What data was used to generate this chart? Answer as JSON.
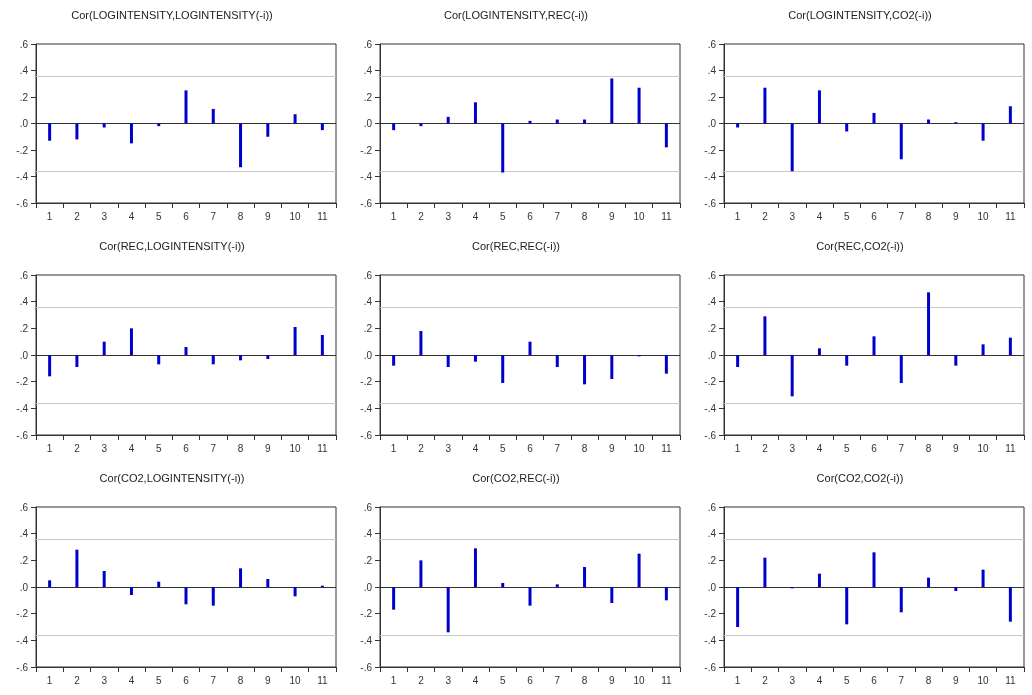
{
  "chart_data": [
    {
      "type": "bar",
      "title": "Cor(LOGINTENSITY,LOGINTENSITY(-i))",
      "categories": [
        "1",
        "2",
        "3",
        "4",
        "5",
        "6",
        "7",
        "8",
        "9",
        "10",
        "11"
      ],
      "color": "#0000cc",
      "values": [
        -0.13,
        -0.12,
        -0.03,
        -0.15,
        -0.02,
        0.25,
        0.11,
        -0.33,
        -0.1,
        0.07,
        -0.05
      ],
      "ylim": [
        -0.6,
        0.6
      ],
      "yticks": [
        {
          "value": -0.6,
          "label": "-.6"
        },
        {
          "value": -0.4,
          "label": "-.4"
        },
        {
          "value": -0.2,
          "label": "-.2"
        },
        {
          "value": 0,
          "label": ".0"
        },
        {
          "value": 0.2,
          "label": ".2"
        },
        {
          "value": 0.4,
          "label": ".4"
        },
        {
          "value": 0.6,
          "label": ".6"
        }
      ],
      "grid": false,
      "ref_lines": [
        {
          "axis": "y",
          "value": 0.36,
          "color": "#c8c8c8"
        },
        {
          "axis": "y",
          "value": -0.36,
          "color": "#c8c8c8"
        },
        {
          "axis": "y",
          "value": 0,
          "color": "#333333"
        }
      ]
    },
    {
      "type": "bar",
      "title": "Cor(LOGINTENSITY,REC(-i))",
      "categories": [
        "1",
        "2",
        "3",
        "4",
        "5",
        "6",
        "7",
        "8",
        "9",
        "10",
        "11"
      ],
      "color": "#0000cc",
      "values": [
        -0.05,
        -0.02,
        0.05,
        0.16,
        -0.37,
        0.02,
        0.03,
        0.03,
        0.34,
        0.27,
        -0.18
      ],
      "ylim": [
        -0.6,
        0.6
      ],
      "yticks": [
        {
          "value": -0.6,
          "label": "-.6"
        },
        {
          "value": -0.4,
          "label": "-.4"
        },
        {
          "value": -0.2,
          "label": "-.2"
        },
        {
          "value": 0,
          "label": ".0"
        },
        {
          "value": 0.2,
          "label": ".2"
        },
        {
          "value": 0.4,
          "label": ".4"
        },
        {
          "value": 0.6,
          "label": ".6"
        }
      ],
      "grid": false,
      "ref_lines": [
        {
          "axis": "y",
          "value": 0.36,
          "color": "#c8c8c8"
        },
        {
          "axis": "y",
          "value": -0.36,
          "color": "#c8c8c8"
        },
        {
          "axis": "y",
          "value": 0,
          "color": "#333333"
        }
      ]
    },
    {
      "type": "bar",
      "title": "Cor(LOGINTENSITY,CO2(-i))",
      "categories": [
        "1",
        "2",
        "3",
        "4",
        "5",
        "6",
        "7",
        "8",
        "9",
        "10",
        "11"
      ],
      "color": "#0000cc",
      "values": [
        -0.03,
        0.27,
        -0.36,
        0.25,
        -0.06,
        0.08,
        -0.27,
        0.03,
        0.01,
        -0.13,
        0.13
      ],
      "ylim": [
        -0.6,
        0.6
      ],
      "yticks": [
        {
          "value": -0.6,
          "label": "-.6"
        },
        {
          "value": -0.4,
          "label": "-.4"
        },
        {
          "value": -0.2,
          "label": "-.2"
        },
        {
          "value": 0,
          "label": ".0"
        },
        {
          "value": 0.2,
          "label": ".2"
        },
        {
          "value": 0.4,
          "label": ".4"
        },
        {
          "value": 0.6,
          "label": ".6"
        }
      ],
      "grid": false,
      "ref_lines": [
        {
          "axis": "y",
          "value": 0.36,
          "color": "#c8c8c8"
        },
        {
          "axis": "y",
          "value": -0.36,
          "color": "#c8c8c8"
        },
        {
          "axis": "y",
          "value": 0,
          "color": "#333333"
        }
      ]
    },
    {
      "type": "bar",
      "title": "Cor(REC,LOGINTENSITY(-i))",
      "categories": [
        "1",
        "2",
        "3",
        "4",
        "5",
        "6",
        "7",
        "8",
        "9",
        "10",
        "11"
      ],
      "color": "#0000cc",
      "values": [
        -0.16,
        -0.09,
        0.1,
        0.2,
        -0.07,
        0.06,
        -0.07,
        -0.04,
        -0.03,
        0.21,
        0.15
      ],
      "ylim": [
        -0.6,
        0.6
      ],
      "yticks": [
        {
          "value": -0.6,
          "label": "-.6"
        },
        {
          "value": -0.4,
          "label": "-.4"
        },
        {
          "value": -0.2,
          "label": "-.2"
        },
        {
          "value": 0,
          "label": ".0"
        },
        {
          "value": 0.2,
          "label": ".2"
        },
        {
          "value": 0.4,
          "label": ".4"
        },
        {
          "value": 0.6,
          "label": ".6"
        }
      ],
      "grid": false,
      "ref_lines": [
        {
          "axis": "y",
          "value": 0.36,
          "color": "#c8c8c8"
        },
        {
          "axis": "y",
          "value": -0.36,
          "color": "#c8c8c8"
        },
        {
          "axis": "y",
          "value": 0,
          "color": "#333333"
        }
      ]
    },
    {
      "type": "bar",
      "title": "Cor(REC,REC(-i))",
      "categories": [
        "1",
        "2",
        "3",
        "4",
        "5",
        "6",
        "7",
        "8",
        "9",
        "10",
        "11"
      ],
      "color": "#0000cc",
      "values": [
        -0.08,
        0.18,
        -0.09,
        -0.05,
        -0.21,
        0.1,
        -0.09,
        -0.22,
        -0.18,
        -0.01,
        -0.14
      ],
      "ylim": [
        -0.6,
        0.6
      ],
      "yticks": [
        {
          "value": -0.6,
          "label": "-.6"
        },
        {
          "value": -0.4,
          "label": "-.4"
        },
        {
          "value": -0.2,
          "label": "-.2"
        },
        {
          "value": 0,
          "label": ".0"
        },
        {
          "value": 0.2,
          "label": ".2"
        },
        {
          "value": 0.4,
          "label": ".4"
        },
        {
          "value": 0.6,
          "label": ".6"
        }
      ],
      "grid": false,
      "ref_lines": [
        {
          "axis": "y",
          "value": 0.36,
          "color": "#c8c8c8"
        },
        {
          "axis": "y",
          "value": -0.36,
          "color": "#c8c8c8"
        },
        {
          "axis": "y",
          "value": 0,
          "color": "#333333"
        }
      ]
    },
    {
      "type": "bar",
      "title": "Cor(REC,CO2(-i))",
      "categories": [
        "1",
        "2",
        "3",
        "4",
        "5",
        "6",
        "7",
        "8",
        "9",
        "10",
        "11"
      ],
      "color": "#0000cc",
      "values": [
        -0.09,
        0.29,
        -0.31,
        0.05,
        -0.08,
        0.14,
        -0.21,
        0.47,
        -0.08,
        0.08,
        0.13
      ],
      "ylim": [
        -0.6,
        0.6
      ],
      "yticks": [
        {
          "value": -0.6,
          "label": "-.6"
        },
        {
          "value": -0.4,
          "label": "-.4"
        },
        {
          "value": -0.2,
          "label": "-.2"
        },
        {
          "value": 0,
          "label": ".0"
        },
        {
          "value": 0.2,
          "label": ".2"
        },
        {
          "value": 0.4,
          "label": ".4"
        },
        {
          "value": 0.6,
          "label": ".6"
        }
      ],
      "grid": false,
      "ref_lines": [
        {
          "axis": "y",
          "value": 0.36,
          "color": "#c8c8c8"
        },
        {
          "axis": "y",
          "value": -0.36,
          "color": "#c8c8c8"
        },
        {
          "axis": "y",
          "value": 0,
          "color": "#333333"
        }
      ]
    },
    {
      "type": "bar",
      "title": "Cor(CO2,LOGINTENSITY(-i))",
      "categories": [
        "1",
        "2",
        "3",
        "4",
        "5",
        "6",
        "7",
        "8",
        "9",
        "10",
        "11"
      ],
      "color": "#0000cc",
      "values": [
        0.05,
        0.28,
        0.12,
        -0.06,
        0.04,
        -0.13,
        -0.14,
        0.14,
        0.06,
        -0.07,
        0.01
      ],
      "ylim": [
        -0.6,
        0.6
      ],
      "yticks": [
        {
          "value": -0.6,
          "label": "-.6"
        },
        {
          "value": -0.4,
          "label": "-.4"
        },
        {
          "value": -0.2,
          "label": "-.2"
        },
        {
          "value": 0,
          "label": ".0"
        },
        {
          "value": 0.2,
          "label": ".2"
        },
        {
          "value": 0.4,
          "label": ".4"
        },
        {
          "value": 0.6,
          "label": ".6"
        }
      ],
      "grid": false,
      "ref_lines": [
        {
          "axis": "y",
          "value": 0.36,
          "color": "#c8c8c8"
        },
        {
          "axis": "y",
          "value": -0.36,
          "color": "#c8c8c8"
        },
        {
          "axis": "y",
          "value": 0,
          "color": "#333333"
        }
      ]
    },
    {
      "type": "bar",
      "title": "Cor(CO2,REC(-i))",
      "categories": [
        "1",
        "2",
        "3",
        "4",
        "5",
        "6",
        "7",
        "8",
        "9",
        "10",
        "11"
      ],
      "color": "#0000cc",
      "values": [
        -0.17,
        0.2,
        -0.34,
        0.29,
        0.03,
        -0.14,
        0.02,
        0.15,
        -0.12,
        0.25,
        -0.1
      ],
      "ylim": [
        -0.6,
        0.6
      ],
      "yticks": [
        {
          "value": -0.6,
          "label": "-.6"
        },
        {
          "value": -0.4,
          "label": "-.4"
        },
        {
          "value": -0.2,
          "label": "-.2"
        },
        {
          "value": 0,
          "label": ".0"
        },
        {
          "value": 0.2,
          "label": ".2"
        },
        {
          "value": 0.4,
          "label": ".4"
        },
        {
          "value": 0.6,
          "label": ".6"
        }
      ],
      "grid": false,
      "ref_lines": [
        {
          "axis": "y",
          "value": 0.36,
          "color": "#c8c8c8"
        },
        {
          "axis": "y",
          "value": -0.36,
          "color": "#c8c8c8"
        },
        {
          "axis": "y",
          "value": 0,
          "color": "#333333"
        }
      ]
    },
    {
      "type": "bar",
      "title": "Cor(CO2,CO2(-i))",
      "categories": [
        "1",
        "2",
        "3",
        "4",
        "5",
        "6",
        "7",
        "8",
        "9",
        "10",
        "11"
      ],
      "color": "#0000cc",
      "values": [
        -0.3,
        0.22,
        -0.01,
        0.1,
        -0.28,
        0.26,
        -0.19,
        0.07,
        -0.03,
        0.13,
        -0.26
      ],
      "ylim": [
        -0.6,
        0.6
      ],
      "yticks": [
        {
          "value": -0.6,
          "label": "-.6"
        },
        {
          "value": -0.4,
          "label": "-.4"
        },
        {
          "value": -0.2,
          "label": "-.2"
        },
        {
          "value": 0,
          "label": ".0"
        },
        {
          "value": 0.2,
          "label": ".2"
        },
        {
          "value": 0.4,
          "label": ".4"
        },
        {
          "value": 0.6,
          "label": ".6"
        }
      ],
      "grid": false,
      "ref_lines": [
        {
          "axis": "y",
          "value": 0.36,
          "color": "#c8c8c8"
        },
        {
          "axis": "y",
          "value": -0.36,
          "color": "#c8c8c8"
        },
        {
          "axis": "y",
          "value": 0,
          "color": "#333333"
        }
      ]
    }
  ]
}
